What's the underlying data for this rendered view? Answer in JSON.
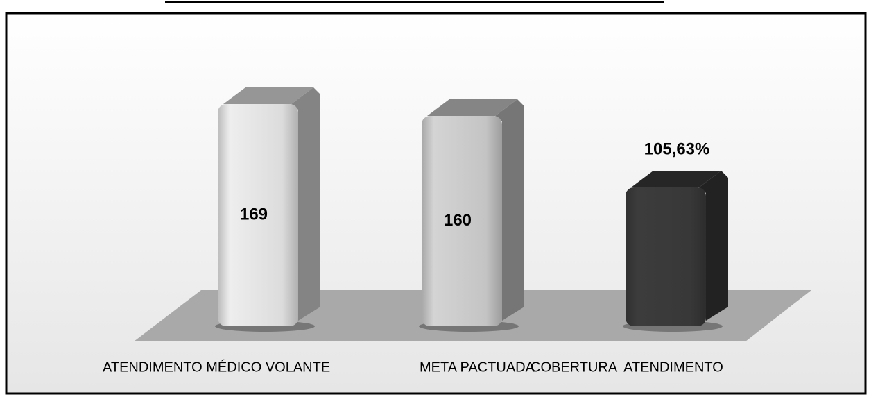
{
  "chart_data": {
    "type": "bar3d",
    "categories": [
      "ATENDIMENTO MÉDICO VOLANTE",
      "META PACTUADA",
      "COBERTURA  ATENDIMENTO"
    ],
    "values": [
      169,
      160,
      105.63
    ],
    "value_labels": [
      "169",
      "160",
      "105,63%"
    ],
    "colors": [
      "#dcdcdc",
      "#c4c4c4",
      "#383838"
    ]
  }
}
